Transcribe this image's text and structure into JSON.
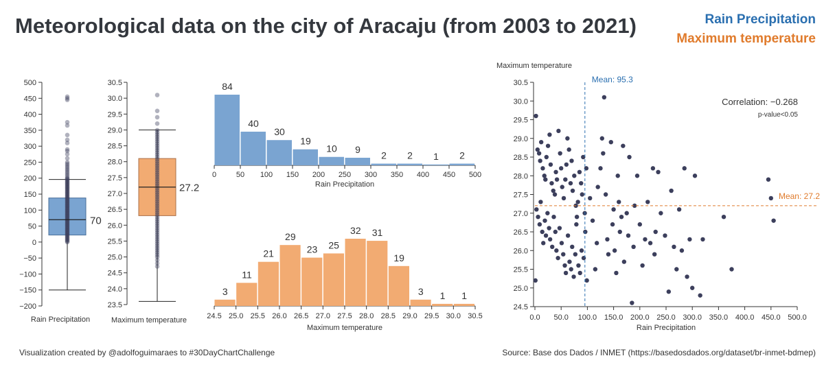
{
  "header": {
    "title": "Meteorological data on the city of Aracaju (from 2003 to 2021)",
    "legend_rain": "Rain Precipitation",
    "legend_temp": "Maximum temperature"
  },
  "footer": {
    "credit": "Visualization created by @adolfoguimaraes to #30DayChartChallenge",
    "source": "Source: Base dos Dados / INMET (https://basedosdados.org/dataset/br-inmet-bdmep)"
  },
  "colors": {
    "rain": "#7aa4d1",
    "rain_dark": "#2a6fb0",
    "temp": "#f2ab72",
    "temp_dark": "#e07b2c",
    "dots": "#3c3f5c"
  },
  "chart_data": [
    {
      "type": "boxplot",
      "xlabel": "Rain Precipitation",
      "ylim": [
        -200,
        500
      ],
      "yticks": [
        "500",
        "450",
        "400",
        "350",
        "300",
        "250",
        "200",
        "150",
        "100",
        "50",
        "0",
        "−50",
        "−100",
        "−150",
        "−200"
      ],
      "whisker_low": -150,
      "q1": 22,
      "median": 70,
      "q3": 138,
      "whisker_high": 196,
      "median_label": "70",
      "outliers": [
        455,
        450,
        445,
        375,
        365,
        335,
        320,
        310,
        290,
        285,
        275,
        262,
        250,
        245,
        240,
        235,
        230,
        225,
        220,
        215,
        210,
        205,
        200
      ]
    },
    {
      "type": "boxplot",
      "xlabel": "Maximum temperature",
      "ylim": [
        23.5,
        30.5
      ],
      "yticks": [
        "30.5",
        "30.0",
        "29.5",
        "29.0",
        "28.5",
        "28.0",
        "27.5",
        "27.0",
        "26.5",
        "26.0",
        "25.5",
        "25.0",
        "24.5",
        "24.0",
        "23.5"
      ],
      "whisker_low": 23.6,
      "q1": 26.3,
      "median": 27.2,
      "q3": 28.1,
      "whisker_high": 29.0,
      "median_label": "27.2",
      "outliers": [
        30.1,
        29.6,
        29.4,
        29.2,
        24.9,
        24.8,
        24.7
      ]
    },
    {
      "type": "histogram",
      "xlabel": "Rain Precipitation",
      "bins": [
        0,
        50,
        100,
        150,
        200,
        250,
        300,
        350,
        400,
        450,
        500
      ],
      "xticks": [
        "0",
        "50",
        "100",
        "150",
        "200",
        "250",
        "300",
        "350",
        "400",
        "450",
        "500"
      ],
      "values": [
        84,
        40,
        30,
        19,
        10,
        9,
        2,
        2,
        1,
        2
      ],
      "labels": [
        "84",
        "40",
        "30",
        "19",
        "10",
        "9",
        "2",
        "2",
        "1",
        "2"
      ]
    },
    {
      "type": "histogram",
      "xlabel": "Maximum temperature",
      "bins": [
        24.5,
        25.0,
        25.5,
        26.0,
        26.5,
        27.0,
        27.5,
        28.0,
        28.5,
        29.0,
        29.5,
        30.0,
        30.5
      ],
      "xticks": [
        "24.5",
        "25.0",
        "25.5",
        "26.0",
        "26.5",
        "27.0",
        "27.5",
        "28.0",
        "28.5",
        "29.0",
        "29.5",
        "30.0",
        "30.5"
      ],
      "values": [
        3,
        11,
        21,
        29,
        23,
        25,
        32,
        31,
        19,
        3,
        1,
        1
      ],
      "labels": [
        "3",
        "11",
        "21",
        "29",
        "23",
        "25",
        "32",
        "31",
        "19",
        "3",
        "1",
        "1"
      ]
    },
    {
      "type": "scatter",
      "xlabel": "Rain Precipitation",
      "ylabel": "Maximum temperature",
      "xlim": [
        0,
        500
      ],
      "ylim": [
        24.5,
        30.5
      ],
      "xticks": [
        "0.0",
        "50.0",
        "100.0",
        "150.0",
        "200.0",
        "250.0",
        "300.0",
        "350.0",
        "400.0",
        "450.0",
        "500.0"
      ],
      "yticks": [
        "30.5",
        "30.0",
        "29.5",
        "29.0",
        "28.5",
        "28.0",
        "27.5",
        "27.0",
        "26.5",
        "26.0",
        "25.5",
        "25.0",
        "24.5"
      ],
      "mean_x": 95.3,
      "mean_x_label": "Mean: 95.3",
      "mean_y": 27.2,
      "mean_y_label": "Mean: 27.2",
      "correlation_label": "Correlation: −0.268",
      "pvalue_label": "p-value<0.05",
      "points": [
        [
          2,
          29.6
        ],
        [
          1,
          25.2
        ],
        [
          5,
          28.7
        ],
        [
          8,
          28.6
        ],
        [
          10,
          28.4
        ],
        [
          12,
          28.9
        ],
        [
          15,
          28.2
        ],
        [
          18,
          28.0
        ],
        [
          20,
          27.9
        ],
        [
          22,
          28.5
        ],
        [
          25,
          28.8
        ],
        [
          28,
          29.1
        ],
        [
          30,
          28.3
        ],
        [
          32,
          27.8
        ],
        [
          35,
          27.6
        ],
        [
          38,
          27.5
        ],
        [
          40,
          28.1
        ],
        [
          42,
          27.9
        ],
        [
          45,
          29.2
        ],
        [
          48,
          28.6
        ],
        [
          50,
          28.2
        ],
        [
          52,
          27.7
        ],
        [
          55,
          27.4
        ],
        [
          58,
          27.9
        ],
        [
          60,
          28.3
        ],
        [
          62,
          29.0
        ],
        [
          65,
          28.7
        ],
        [
          68,
          27.8
        ],
        [
          70,
          28.4
        ],
        [
          72,
          27.6
        ],
        [
          75,
          28.0
        ],
        [
          78,
          27.2
        ],
        [
          80,
          26.9
        ],
        [
          82,
          27.3
        ],
        [
          85,
          28.1
        ],
        [
          88,
          27.8
        ],
        [
          90,
          27.5
        ],
        [
          92,
          28.5
        ],
        [
          95,
          27.0
        ],
        [
          98,
          28.2
        ],
        [
          3,
          27.1
        ],
        [
          6,
          26.9
        ],
        [
          9,
          26.7
        ],
        [
          11,
          27.3
        ],
        [
          14,
          26.5
        ],
        [
          16,
          26.2
        ],
        [
          19,
          26.8
        ],
        [
          21,
          26.4
        ],
        [
          24,
          27.0
        ],
        [
          27,
          26.6
        ],
        [
          29,
          26.3
        ],
        [
          33,
          26.1
        ],
        [
          36,
          26.9
        ],
        [
          39,
          26.5
        ],
        [
          41,
          26.0
        ],
        [
          44,
          25.8
        ],
        [
          47,
          26.6
        ],
        [
          51,
          26.2
        ],
        [
          54,
          25.9
        ],
        [
          57,
          25.6
        ],
        [
          59,
          25.4
        ],
        [
          63,
          26.4
        ],
        [
          66,
          25.7
        ],
        [
          69,
          25.5
        ],
        [
          71,
          26.1
        ],
        [
          74,
          25.3
        ],
        [
          77,
          25.9
        ],
        [
          79,
          26.7
        ],
        [
          83,
          25.6
        ],
        [
          86,
          25.4
        ],
        [
          89,
          26.0
        ],
        [
          93,
          25.8
        ],
        [
          96,
          26.5
        ],
        [
          99,
          25.2
        ],
        [
          105,
          27.4
        ],
        [
          110,
          26.8
        ],
        [
          115,
          25.5
        ],
        [
          118,
          26.2
        ],
        [
          120,
          27.7
        ],
        [
          125,
          28.2
        ],
        [
          128,
          29.0
        ],
        [
          130,
          28.6
        ],
        [
          132,
          30.1
        ],
        [
          135,
          27.5
        ],
        [
          138,
          26.3
        ],
        [
          140,
          25.9
        ],
        [
          145,
          28.9
        ],
        [
          148,
          26.7
        ],
        [
          150,
          27.1
        ],
        [
          152,
          26.0
        ],
        [
          155,
          25.4
        ],
        [
          158,
          28.0
        ],
        [
          160,
          27.3
        ],
        [
          162,
          26.5
        ],
        [
          165,
          26.9
        ],
        [
          168,
          28.8
        ],
        [
          170,
          25.7
        ],
        [
          175,
          27.0
        ],
        [
          178,
          26.4
        ],
        [
          180,
          28.5
        ],
        [
          185,
          24.6
        ],
        [
          188,
          26.1
        ],
        [
          190,
          27.2
        ],
        [
          195,
          28.0
        ],
        [
          200,
          26.7
        ],
        [
          205,
          25.6
        ],
        [
          210,
          26.3
        ],
        [
          215,
          27.3
        ],
        [
          220,
          26.2
        ],
        [
          225,
          28.2
        ],
        [
          228,
          25.9
        ],
        [
          230,
          26.5
        ],
        [
          235,
          28.1
        ],
        [
          240,
          27.0
        ],
        [
          248,
          26.4
        ],
        [
          255,
          24.9
        ],
        [
          260,
          27.6
        ],
        [
          265,
          26.1
        ],
        [
          270,
          25.5
        ],
        [
          275,
          27.1
        ],
        [
          280,
          26.0
        ],
        [
          285,
          28.2
        ],
        [
          290,
          25.3
        ],
        [
          295,
          26.3
        ],
        [
          300,
          25.0
        ],
        [
          305,
          28.0
        ],
        [
          315,
          24.8
        ],
        [
          320,
          26.3
        ],
        [
          360,
          26.9
        ],
        [
          375,
          25.5
        ],
        [
          445,
          27.9
        ],
        [
          450,
          27.4
        ],
        [
          455,
          26.8
        ]
      ]
    }
  ]
}
